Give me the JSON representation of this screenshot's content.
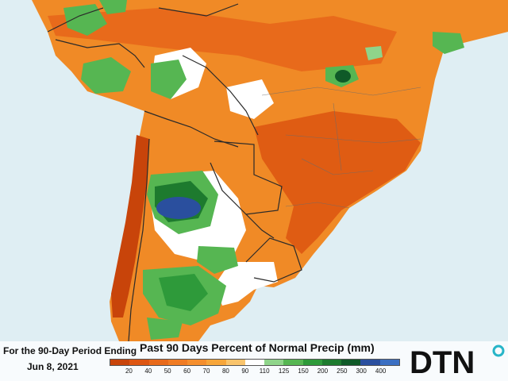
{
  "legend": {
    "period_line1": "For the 90-Day Period Ending",
    "period_line2": "Jun 8, 2021",
    "title": "Past 90 Days Percent of Normal Precip (mm)",
    "ticks": [
      "20",
      "40",
      "50",
      "60",
      "70",
      "80",
      "90",
      "110",
      "125",
      "150",
      "200",
      "250",
      "300",
      "400"
    ],
    "colors": [
      "#c8440a",
      "#dd5612",
      "#e86a1b",
      "#f07c24",
      "#f58f2e",
      "#f7a63a",
      "#f9c46c",
      "#ffffff",
      "#8fd48a",
      "#56b652",
      "#2e9a3a",
      "#1d7a2e",
      "#0f5a28",
      "#2a4f9e",
      "#3b6fc2"
    ]
  },
  "logo": {
    "text": "DTN",
    "accent": "#27b5c8"
  },
  "map": {
    "ocean_color": "#dfeef3",
    "land_color": "#f08a26",
    "border_color": "#2a2a2a"
  }
}
